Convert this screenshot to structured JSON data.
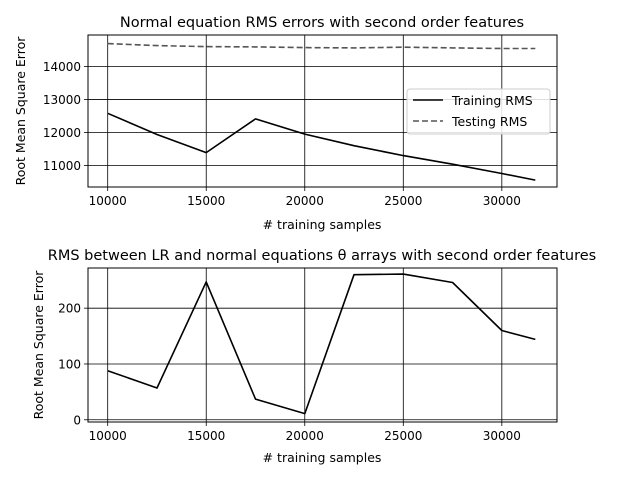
{
  "chart_data": [
    {
      "type": "line",
      "title": "Normal equation RMS errors with second order features",
      "xlabel": "# training samples",
      "ylabel": "Root Mean Square Error",
      "xlim": [
        9000,
        32800
      ],
      "ylim": [
        10350,
        14950
      ],
      "xticks": [
        10000,
        15000,
        20000,
        25000,
        30000
      ],
      "yticks": [
        11000,
        12000,
        13000,
        14000
      ],
      "grid": true,
      "legend": "center-right",
      "series": [
        {
          "name": "Training RMS",
          "style": "solid",
          "color": "#000000",
          "x": [
            10000,
            12500,
            15000,
            17500,
            20000,
            22500,
            25000,
            27500,
            30000,
            31700
          ],
          "y": [
            12580,
            11940,
            11390,
            12410,
            11950,
            11600,
            11300,
            11040,
            10760,
            10560
          ]
        },
        {
          "name": "Testing RMS",
          "style": "dashed",
          "color": "#555555",
          "x": [
            10000,
            12500,
            15000,
            17500,
            20000,
            22500,
            25000,
            27500,
            30000,
            31700
          ],
          "y": [
            14690,
            14630,
            14600,
            14590,
            14570,
            14560,
            14580,
            14560,
            14540,
            14540
          ]
        }
      ]
    },
    {
      "type": "line",
      "title": "RMS between LR and normal equations θ arrays with second order features",
      "xlabel": "# training samples",
      "ylabel": "Root Mean Square Error",
      "xlim": [
        9000,
        32800
      ],
      "ylim": [
        -4,
        272
      ],
      "xticks": [
        10000,
        15000,
        20000,
        25000,
        30000
      ],
      "yticks": [
        0,
        100,
        200
      ],
      "grid": true,
      "series": [
        {
          "style": "solid",
          "color": "#000000",
          "x": [
            10000,
            12500,
            15000,
            17500,
            20000,
            22500,
            25000,
            27500,
            30000,
            31700
          ],
          "y": [
            88,
            57,
            247,
            37,
            11,
            260,
            261,
            246,
            160,
            144
          ]
        }
      ]
    }
  ]
}
